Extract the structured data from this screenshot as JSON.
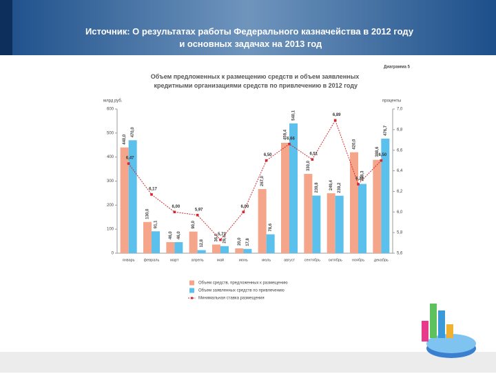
{
  "header": {
    "title": "Источник: О результатах работы Федерального казначейства в 2012 году и основных задачах на 2013 год"
  },
  "chart_data": {
    "type": "bar-line",
    "title": "Объем предложенных к размещению средств и объем заявленных кредитными организациями средств по привлечению в 2012 году",
    "subtitle": "Диаграмма 5",
    "y_label": "млрд руб.",
    "y2_label": "проценты",
    "categories": [
      "январь",
      "февраль",
      "март",
      "апрель",
      "май",
      "июнь",
      "июль",
      "август",
      "сентябрь",
      "октябрь",
      "ноябрь",
      "декабрь"
    ],
    "series": [
      {
        "name": "Объем средств, предложенных к размещению",
        "color": "#f4a58a",
        "type": "bar",
        "values": [
          440.0,
          130.0,
          46.0,
          90.0,
          36.0,
          20.0,
          267.0,
          459.4,
          330.0,
          249.4,
          420.0,
          388.6
        ],
        "value_labels": [
          "440,0",
          "130,0",
          "46,0",
          "90,0",
          "36,0",
          "20,0",
          "267,0",
          "459,4",
          "330,0",
          "249,4",
          "420,0",
          "388,6"
        ]
      },
      {
        "name": "Объем заявленных средств по привлечению",
        "color": "#5bc0eb",
        "type": "bar",
        "values": [
          470.0,
          91.1,
          46.0,
          12.8,
          29.4,
          17.8,
          78.6,
          540.1,
          239.8,
          239.2,
          288.3,
          476.7
        ],
        "value_labels": [
          "470,0",
          "91,1",
          "46,0",
          "12,8",
          "29,4",
          "17,8",
          "78,6",
          "540,1",
          "239,8",
          "239,2",
          "288,3",
          "476,7"
        ]
      },
      {
        "name": "Минимальная ставка размещения",
        "color": "#d7262b",
        "type": "line",
        "axis": "y2",
        "values": [
          6.47,
          6.17,
          6.0,
          5.97,
          5.73,
          6.0,
          6.5,
          6.66,
          6.51,
          6.89,
          6.27,
          6.5
        ],
        "value_labels": [
          "6,47",
          "6,17",
          "6,00",
          "5,97",
          "5,73",
          "6,00",
          "6,50",
          "6,66",
          "6,51",
          "6,89",
          "6,27",
          "6,50"
        ]
      }
    ],
    "ylim": [
      0,
      600
    ],
    "yticks": [
      0,
      100,
      200,
      300,
      400,
      500,
      600
    ],
    "y2lim": [
      5.6,
      7.0
    ],
    "y2ticks": [
      {
        "value": 5.6,
        "label": "5,6"
      },
      {
        "value": 5.8,
        "label": "5,8"
      },
      {
        "value": 6.0,
        "label": "6,0"
      },
      {
        "value": 6.2,
        "label": "6,2"
      },
      {
        "value": 6.4,
        "label": "6,4"
      },
      {
        "value": 6.6,
        "label": "6,6"
      },
      {
        "value": 6.8,
        "label": "6,8"
      },
      {
        "value": 7.0,
        "label": "7,0"
      }
    ]
  }
}
